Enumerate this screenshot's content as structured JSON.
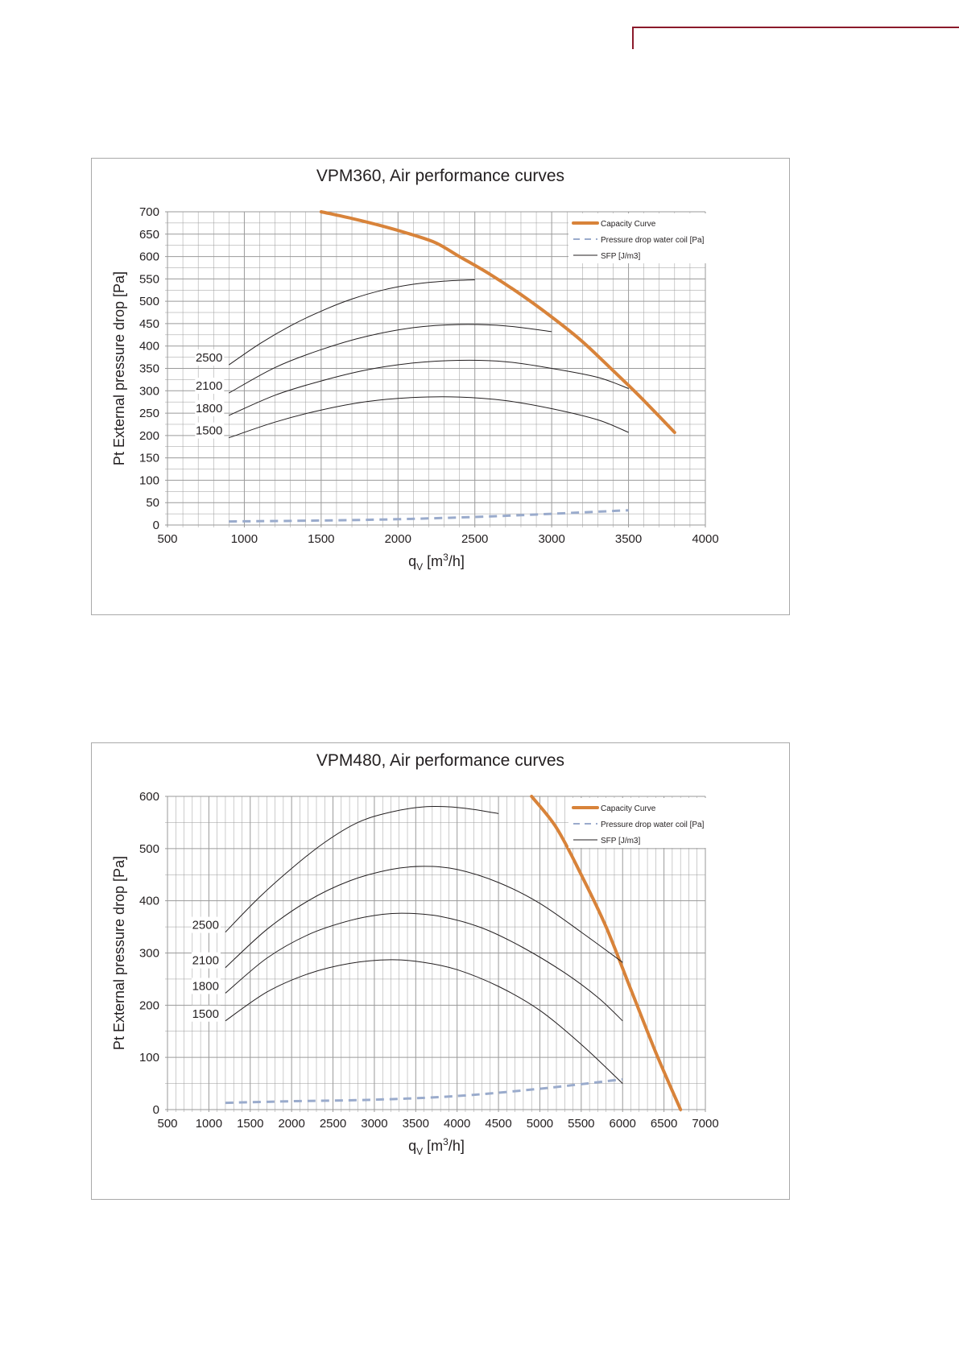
{
  "colors": {
    "capacity": "#d8833a",
    "pressure_drop": "#9aabcc",
    "sfp": "#231f20",
    "grid": "#9a9a9a",
    "accent_rule": "#8b1a2b"
  },
  "chart_data": [
    {
      "type": "line",
      "title": "VPM360, Air performance curves",
      "xlabel": "qV [m3/h]",
      "ylabel": "Pt External pressure drop [Pa]",
      "xlim": [
        500,
        4000
      ],
      "ylim": [
        0,
        700
      ],
      "xticks": [
        500,
        1000,
        1500,
        2000,
        2500,
        3000,
        3500,
        4000
      ],
      "yticks": [
        0,
        50,
        100,
        150,
        200,
        250,
        300,
        350,
        400,
        450,
        500,
        550,
        600,
        650,
        700
      ],
      "grid": true,
      "legend_position": "top-right",
      "legend": [
        "Capacity Curve",
        "Pressure drop water coil [Pa]",
        "SFP [J/m3]"
      ],
      "series": [
        {
          "name": "Capacity Curve",
          "style": "capacity",
          "x": [
            1500,
            1700,
            1900,
            2100,
            2250,
            2400,
            2600,
            2800,
            3000,
            3200,
            3400,
            3500,
            3600,
            3800
          ],
          "y": [
            700,
            685,
            668,
            648,
            630,
            600,
            560,
            515,
            465,
            410,
            345,
            312,
            278,
            207
          ]
        },
        {
          "name": "Pressure drop water coil [Pa]",
          "style": "pressure",
          "x": [
            900,
            1500,
            2000,
            2500,
            3000,
            3500
          ],
          "y": [
            8,
            10,
            13,
            18,
            25,
            33
          ]
        },
        {
          "name": "SFP [J/m3]",
          "style": "sfp",
          "label": "2500",
          "x": [
            900,
            1100,
            1300,
            1500,
            1700,
            1900,
            2100,
            2300,
            2500
          ],
          "y": [
            358,
            405,
            445,
            478,
            505,
            525,
            538,
            545,
            548
          ]
        },
        {
          "name": "SFP [J/m3]",
          "style": "sfp",
          "label": "2100",
          "x": [
            900,
            1200,
            1500,
            1800,
            2100,
            2400,
            2700,
            3000
          ],
          "y": [
            295,
            352,
            392,
            422,
            441,
            448,
            445,
            432
          ]
        },
        {
          "name": "SFP [J/m3]",
          "style": "sfp",
          "label": "1800",
          "x": [
            900,
            1200,
            1500,
            1800,
            2100,
            2400,
            2700,
            3000,
            3300,
            3500
          ],
          "y": [
            245,
            290,
            322,
            347,
            362,
            368,
            365,
            350,
            330,
            305
          ]
        },
        {
          "name": "SFP [J/m3]",
          "style": "sfp",
          "label": "1500",
          "x": [
            900,
            1200,
            1500,
            1800,
            2100,
            2400,
            2700,
            3000,
            3300,
            3500
          ],
          "y": [
            195,
            230,
            257,
            276,
            285,
            286,
            278,
            260,
            235,
            207
          ]
        }
      ]
    },
    {
      "type": "line",
      "title": "VPM480, Air performance curves",
      "xlabel": "qV [m3/h]",
      "ylabel": "Pt External pressure drop [Pa]",
      "xlim": [
        500,
        7000
      ],
      "ylim": [
        0,
        600
      ],
      "xticks": [
        500,
        1000,
        1500,
        2000,
        2500,
        3000,
        3500,
        4000,
        4500,
        5000,
        5500,
        6000,
        6500,
        7000
      ],
      "yticks": [
        0,
        100,
        200,
        300,
        400,
        500,
        600
      ],
      "grid": true,
      "legend_position": "top-right",
      "legend": [
        "Capacity Curve",
        "Pressure drop water coil [Pa]",
        "SFP [J/m3]"
      ],
      "series": [
        {
          "name": "Capacity Curve",
          "style": "capacity",
          "x": [
            4900,
            5200,
            5500,
            5800,
            6100,
            6400,
            6700
          ],
          "y": [
            600,
            540,
            450,
            350,
            230,
            110,
            0
          ]
        },
        {
          "name": "Pressure drop water coil [Pa]",
          "style": "pressure",
          "x": [
            1200,
            2000,
            3000,
            4000,
            5000,
            6000
          ],
          "y": [
            13,
            16,
            19,
            26,
            40,
            58
          ]
        },
        {
          "name": "SFP [J/m3]",
          "style": "sfp",
          "label": "2500",
          "x": [
            1200,
            1600,
            2000,
            2400,
            2800,
            3200,
            3600,
            3900,
            4200,
            4500
          ],
          "y": [
            340,
            405,
            462,
            512,
            550,
            570,
            580,
            580,
            575,
            567
          ]
        },
        {
          "name": "SFP [J/m3]",
          "style": "sfp",
          "label": "2100",
          "x": [
            1200,
            1700,
            2200,
            2700,
            3200,
            3600,
            4000,
            4500,
            5000,
            5500,
            6000
          ],
          "y": [
            272,
            345,
            400,
            438,
            460,
            466,
            460,
            435,
            395,
            340,
            282
          ]
        },
        {
          "name": "SFP [J/m3]",
          "style": "sfp",
          "label": "1800",
          "x": [
            1200,
            1700,
            2200,
            2700,
            3100,
            3400,
            3800,
            4300,
            4800,
            5300,
            5700,
            6000
          ],
          "y": [
            223,
            290,
            335,
            362,
            374,
            376,
            370,
            348,
            310,
            262,
            215,
            170
          ]
        },
        {
          "name": "SFP [J/m3]",
          "style": "sfp",
          "label": "1500",
          "x": [
            1200,
            1700,
            2200,
            2700,
            3200,
            3600,
            4000,
            4500,
            5000,
            5500,
            6000
          ],
          "y": [
            170,
            225,
            260,
            280,
            287,
            282,
            268,
            236,
            190,
            125,
            50
          ]
        }
      ]
    }
  ]
}
